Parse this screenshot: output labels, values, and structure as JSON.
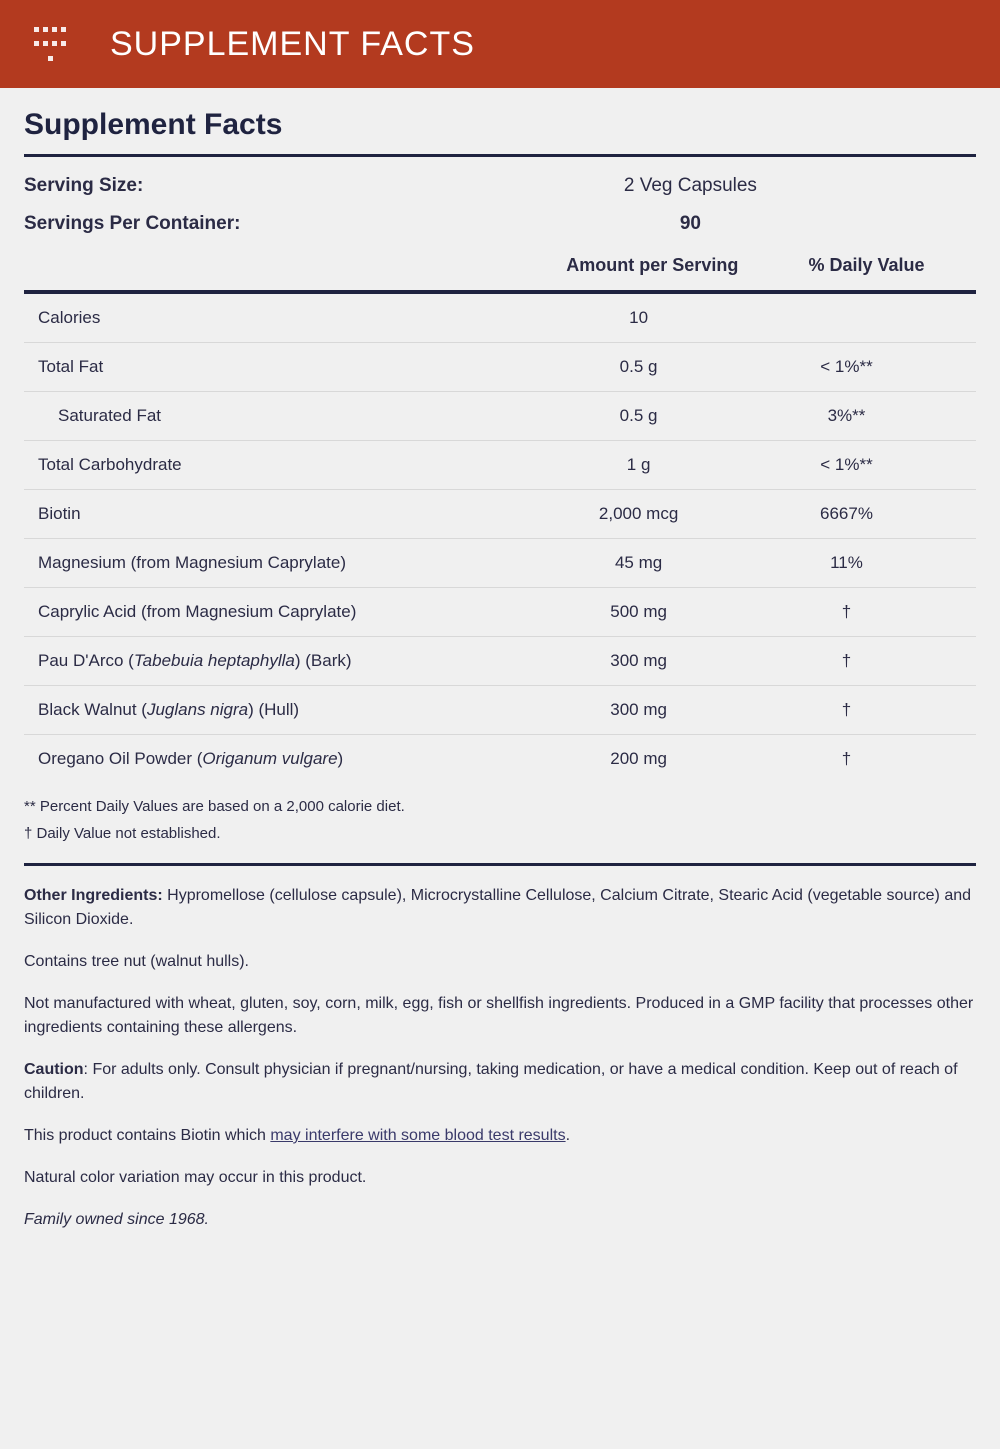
{
  "header": {
    "title": "SUPPLEMENT FACTS",
    "bg_color": "#b33a1f",
    "text_color": "#ffffff"
  },
  "main_title": "Supplement Facts",
  "serving": {
    "size_label": "Serving Size:",
    "size_value": "2 Veg Capsules",
    "per_container_label": "Servings Per Container:",
    "per_container_value": "90"
  },
  "columns": {
    "amount": "Amount per Serving",
    "dv": "% Daily Value"
  },
  "nutrients": [
    {
      "name": "Calories",
      "amount": "10",
      "dv": "",
      "indent": false
    },
    {
      "name": "Total Fat",
      "amount": "0.5 g",
      "dv": "< 1%**",
      "indent": false
    },
    {
      "name": "Saturated Fat",
      "amount": "0.5 g",
      "dv": "3%**",
      "indent": true
    },
    {
      "name": "Total Carbohydrate",
      "amount": "1 g",
      "dv": "< 1%**",
      "indent": false
    },
    {
      "name": "Biotin",
      "amount": "2,000 mcg",
      "dv": "6667%",
      "indent": false
    },
    {
      "name": "Magnesium (from Magnesium Caprylate)",
      "amount": "45 mg",
      "dv": "11%",
      "indent": false
    },
    {
      "name": "Caprylic Acid (from Magnesium Caprylate)",
      "amount": "500 mg",
      "dv": "†",
      "indent": false
    },
    {
      "name_html": "Pau D'Arco (<span class='em'>Tabebuia heptaphylla</span>) (Bark)",
      "amount": "300 mg",
      "dv": "†",
      "indent": false
    },
    {
      "name_html": "Black Walnut (<span class='em'>Juglans nigra</span>) (Hull)",
      "amount": "300 mg",
      "dv": "†",
      "indent": false
    },
    {
      "name_html": "Oregano Oil Powder (<span class='em'>Origanum vulgare</span>)",
      "amount": "200 mg",
      "dv": "†",
      "indent": false
    }
  ],
  "footnotes": {
    "line1": "** Percent Daily Values are based on a 2,000 calorie diet.",
    "line2": "† Daily Value not established."
  },
  "info": {
    "other_ingredients_label": "Other Ingredients:",
    "other_ingredients_text": " Hypromellose (cellulose capsule), Microcrystalline Cellulose, Calcium Citrate, Stearic Acid (vegetable source) and Silicon Dioxide.",
    "contains": "Contains tree nut (walnut hulls).",
    "not_manufactured": "Not manufactured with wheat, gluten, soy, corn, milk, egg, fish or shellfish ingredients. Produced in a GMP facility that processes other ingredients containing these allergens.",
    "caution_label": "Caution",
    "caution_text": ": For adults only. Consult physician if pregnant/nursing, taking medication, or have a medical condition. Keep out of reach of children.",
    "biotin_pre": "This product contains Biotin which ",
    "biotin_link": "may interfere with some blood test results",
    "biotin_post": ".",
    "color_variation": "Natural color variation may occur in this product.",
    "family_owned": "Family owned since 1968."
  },
  "style": {
    "body_bg": "#f0f0f0",
    "text_color": "#2b2b45",
    "rule_color": "#1f2340",
    "row_border": "#d8d8d8",
    "link_color": "#3a3a6a"
  }
}
